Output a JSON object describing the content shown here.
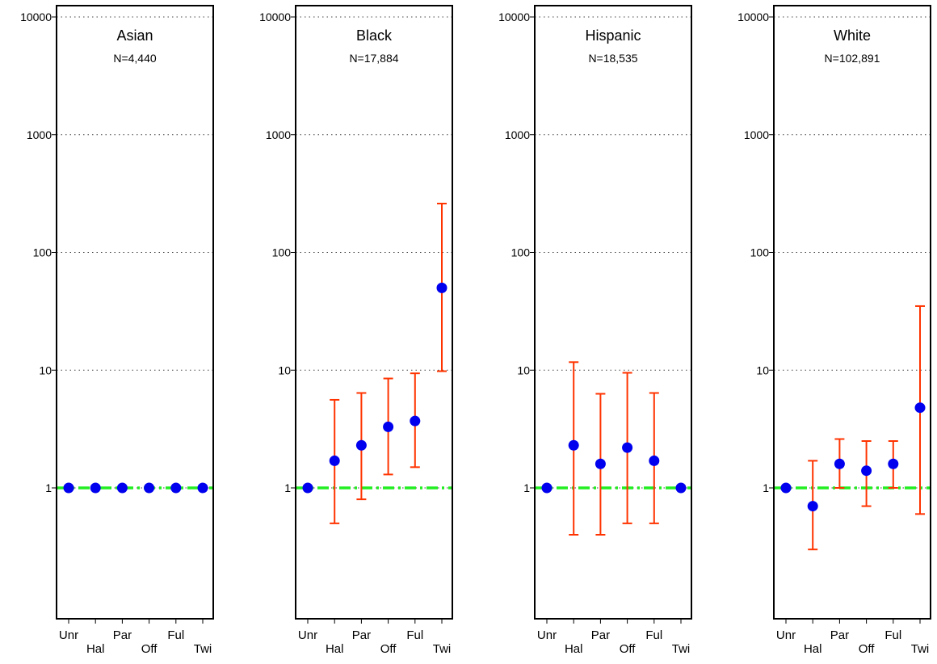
{
  "colors": {
    "point": "#0000ee",
    "errorbar": "#ff3300",
    "reference_line": "#22ee22",
    "gridline": "#444444",
    "frame": "#000000"
  },
  "chart_data": [
    {
      "type": "scatter",
      "title": "Asian",
      "subtitle": "N=4,440",
      "yscale": "log",
      "ylim": [
        0.1,
        10000
      ],
      "yticks": [
        1,
        10,
        100,
        1000,
        10000
      ],
      "ytick_labels": [
        "1",
        "10",
        "100",
        "1000",
        "10000"
      ],
      "grid": "horizontal-dotted",
      "reference_line": 1,
      "categories": [
        "Unr",
        "Hal",
        "Par",
        "Off",
        "Ful",
        "Twi"
      ],
      "points": [
        {
          "category": "Unr",
          "y": 1,
          "lo": null,
          "hi": null
        },
        {
          "category": "Hal",
          "y": 1,
          "lo": null,
          "hi": null
        },
        {
          "category": "Par",
          "y": 1,
          "lo": null,
          "hi": null
        },
        {
          "category": "Off",
          "y": 1,
          "lo": null,
          "hi": null
        },
        {
          "category": "Ful",
          "y": 1,
          "lo": null,
          "hi": null
        },
        {
          "category": "Twi",
          "y": 1,
          "lo": null,
          "hi": null
        }
      ]
    },
    {
      "type": "scatter",
      "title": "Black",
      "subtitle": "N=17,884",
      "yscale": "log",
      "ylim": [
        0.1,
        10000
      ],
      "yticks": [
        1,
        10,
        100,
        1000,
        10000
      ],
      "ytick_labels": [
        "1",
        "10",
        "100",
        "1000",
        "10000"
      ],
      "grid": "horizontal-dotted",
      "reference_line": 1,
      "categories": [
        "Unr",
        "Hal",
        "Par",
        "Off",
        "Ful",
        "Twi"
      ],
      "points": [
        {
          "category": "Unr",
          "y": 1,
          "lo": null,
          "hi": null
        },
        {
          "category": "Hal",
          "y": 1.7,
          "lo": 0.5,
          "hi": 5.6
        },
        {
          "category": "Par",
          "y": 2.3,
          "lo": 0.8,
          "hi": 6.4
        },
        {
          "category": "Off",
          "y": 3.3,
          "lo": 1.3,
          "hi": 8.5
        },
        {
          "category": "Ful",
          "y": 3.7,
          "lo": 1.5,
          "hi": 9.4
        },
        {
          "category": "Twi",
          "y": 50,
          "lo": 9.8,
          "hi": 260
        }
      ]
    },
    {
      "type": "scatter",
      "title": "Hispanic",
      "subtitle": "N=18,535",
      "yscale": "log",
      "ylim": [
        0.1,
        10000
      ],
      "yticks": [
        1,
        10,
        100,
        1000,
        10000
      ],
      "ytick_labels": [
        "1",
        "10",
        "100",
        "1000",
        "10000"
      ],
      "grid": "horizontal-dotted",
      "reference_line": 1,
      "categories": [
        "Unr",
        "Hal",
        "Par",
        "Off",
        "Ful",
        "Twi"
      ],
      "points": [
        {
          "category": "Unr",
          "y": 1,
          "lo": null,
          "hi": null
        },
        {
          "category": "Hal",
          "y": 2.3,
          "lo": 0.4,
          "hi": 11.7
        },
        {
          "category": "Par",
          "y": 1.6,
          "lo": 0.4,
          "hi": 6.3
        },
        {
          "category": "Off",
          "y": 2.2,
          "lo": 0.5,
          "hi": 9.5
        },
        {
          "category": "Ful",
          "y": 1.7,
          "lo": 0.5,
          "hi": 6.4
        },
        {
          "category": "Twi",
          "y": 1,
          "lo": null,
          "hi": null
        }
      ]
    },
    {
      "type": "scatter",
      "title": "White",
      "subtitle": "N=102,891",
      "yscale": "log",
      "ylim": [
        0.1,
        10000
      ],
      "yticks": [
        1,
        10,
        100,
        1000,
        10000
      ],
      "ytick_labels": [
        "1",
        "10",
        "100",
        "1000",
        "10000"
      ],
      "grid": "horizontal-dotted",
      "reference_line": 1,
      "categories": [
        "Unr",
        "Hal",
        "Par",
        "Off",
        "Ful",
        "Twi"
      ],
      "points": [
        {
          "category": "Unr",
          "y": 1,
          "lo": null,
          "hi": null
        },
        {
          "category": "Hal",
          "y": 0.7,
          "lo": 0.3,
          "hi": 1.7
        },
        {
          "category": "Par",
          "y": 1.6,
          "lo": 1.0,
          "hi": 2.6
        },
        {
          "category": "Off",
          "y": 1.4,
          "lo": 0.7,
          "hi": 2.5
        },
        {
          "category": "Ful",
          "y": 1.6,
          "lo": 1.0,
          "hi": 2.5
        },
        {
          "category": "Twi",
          "y": 4.8,
          "lo": 0.6,
          "hi": 35
        }
      ]
    }
  ]
}
